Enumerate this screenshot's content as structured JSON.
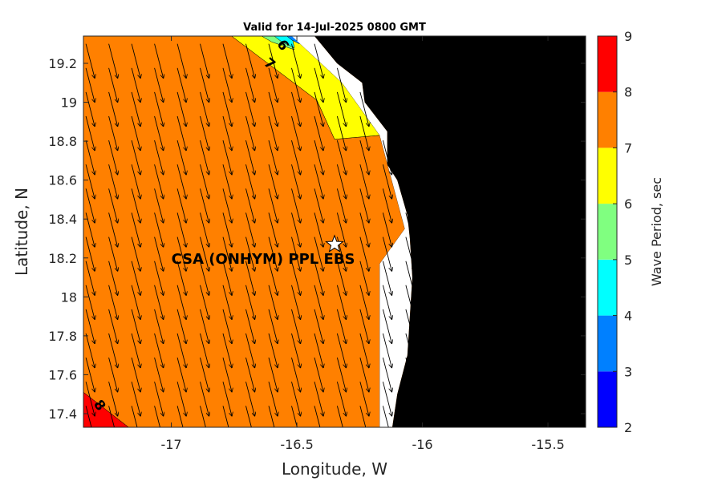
{
  "chart_data": {
    "type": "heatmap",
    "title": "Valid for 14-Jul-2025 0800 GMT",
    "xlabel": "Longitude, W",
    "ylabel": "Latitude, N",
    "xlim": [
      -17.35,
      -15.35
    ],
    "ylim": [
      17.33,
      19.34
    ],
    "x_ticks": [
      "-17",
      "-16.5",
      "-16",
      "-15.5"
    ],
    "x_tick_values": [
      -17,
      -16.5,
      -16,
      -15.5
    ],
    "y_ticks": [
      "17.4",
      "17.6",
      "17.8",
      "18",
      "18.2",
      "18.4",
      "18.6",
      "18.8",
      "19",
      "19.2"
    ],
    "y_tick_values": [
      17.4,
      17.6,
      17.8,
      18.0,
      18.2,
      18.4,
      18.6,
      18.8,
      19.0,
      19.2
    ],
    "colorbar": {
      "label": "Wave Period, sec",
      "ticks": [
        "2",
        "3",
        "4",
        "5",
        "6",
        "7",
        "8",
        "9"
      ],
      "levels": [
        2,
        3,
        4,
        5,
        6,
        7,
        8,
        9
      ],
      "colors": [
        "#0000ff",
        "#0080ff",
        "#00ffff",
        "#80ff80",
        "#ffff00",
        "#ff8000",
        "#ff0000"
      ]
    },
    "regions": [
      {
        "period_range": [
          7,
          8
        ],
        "color": "#ff8000",
        "polygon": [
          [
            -17.35,
            19.34
          ],
          [
            -16.76,
            19.34
          ],
          [
            -16.42,
            19.01
          ],
          [
            -16.35,
            18.81
          ],
          [
            -16.17,
            18.83
          ],
          [
            -16.07,
            18.35
          ],
          [
            -16.17,
            18.17
          ],
          [
            -16.17,
            17.33
          ],
          [
            -17.17,
            17.33
          ],
          [
            -17.35,
            17.51
          ]
        ]
      },
      {
        "period_range": [
          6,
          7
        ],
        "color": "#ffff00",
        "polygon": [
          [
            -16.76,
            19.34
          ],
          [
            -16.52,
            19.34
          ],
          [
            -16.32,
            19.1
          ],
          [
            -16.17,
            18.83
          ],
          [
            -16.35,
            18.81
          ],
          [
            -16.42,
            19.01
          ]
        ]
      },
      {
        "period_range": [
          5,
          6
        ],
        "color": "#80ff80",
        "polygon": [
          [
            -16.64,
            19.34
          ],
          [
            -16.54,
            19.34
          ],
          [
            -16.51,
            19.27
          ],
          [
            -16.6,
            19.31
          ]
        ]
      },
      {
        "period_range": [
          4,
          5
        ],
        "color": "#00ffff",
        "polygon": [
          [
            -16.59,
            19.34
          ],
          [
            -16.52,
            19.34
          ],
          [
            -16.51,
            19.28
          ],
          [
            -16.56,
            19.31
          ]
        ]
      },
      {
        "period_range": [
          3,
          4
        ],
        "color": "#0080ff",
        "polygon": [
          [
            -16.54,
            19.34
          ],
          [
            -16.5,
            19.34
          ],
          [
            -16.49,
            19.3
          ],
          [
            -16.52,
            19.32
          ]
        ]
      },
      {
        "period_range": [
          8,
          9
        ],
        "color": "#ff0000",
        "polygon": [
          [
            -17.35,
            17.51
          ],
          [
            -17.35,
            17.33
          ],
          [
            -17.17,
            17.33
          ]
        ]
      }
    ],
    "no_data_region": {
      "color": "#ffffff",
      "polygon": [
        [
          -16.52,
          19.34
        ],
        [
          -16.43,
          19.34
        ],
        [
          -16.34,
          19.2
        ],
        [
          -16.24,
          19.1
        ],
        [
          -16.23,
          19.0
        ],
        [
          -16.14,
          18.85
        ],
        [
          -16.14,
          18.68
        ],
        [
          -16.1,
          18.6
        ],
        [
          -16.06,
          18.42
        ],
        [
          -16.05,
          18.3
        ],
        [
          -16.04,
          18.1
        ],
        [
          -16.05,
          17.9
        ],
        [
          -16.06,
          17.7
        ],
        [
          -16.1,
          17.5
        ],
        [
          -16.12,
          17.33
        ],
        [
          -16.17,
          17.33
        ],
        [
          -16.17,
          18.17
        ],
        [
          -16.07,
          18.35
        ],
        [
          -16.17,
          18.83
        ],
        [
          -16.32,
          19.1
        ]
      ]
    },
    "land": {
      "color": "#000000",
      "polygon": [
        [
          -16.43,
          19.34
        ],
        [
          -15.35,
          19.34
        ],
        [
          -15.35,
          17.33
        ],
        [
          -16.12,
          17.33
        ],
        [
          -16.1,
          17.5
        ],
        [
          -16.06,
          17.7
        ],
        [
          -16.05,
          17.9
        ],
        [
          -16.04,
          18.1
        ],
        [
          -16.05,
          18.3
        ],
        [
          -16.06,
          18.42
        ],
        [
          -16.1,
          18.6
        ],
        [
          -16.14,
          18.68
        ],
        [
          -16.14,
          18.85
        ],
        [
          -16.23,
          19.0
        ],
        [
          -16.24,
          19.1
        ],
        [
          -16.34,
          19.2
        ]
      ]
    },
    "contour_labels": [
      {
        "text": "6",
        "lon": -16.57,
        "lat": 19.28,
        "rotation": 55
      },
      {
        "text": "7",
        "lon": -16.62,
        "lat": 19.18,
        "rotation": 40
      },
      {
        "text": "8",
        "lon": -17.3,
        "lat": 17.43,
        "rotation": 55
      }
    ],
    "station": {
      "name": "CSA (ONHYM) PPL EBS",
      "lon": -16.35,
      "lat": 18.27,
      "label_lon": -17.0,
      "label_lat": 18.2
    },
    "arrow_direction": {
      "dx": 0.25,
      "dy": -0.97
    },
    "arrow_grid": {
      "lon_start": -17.34,
      "lon_step": 0.091,
      "lat_start": 19.3,
      "lat_step": -0.124
    }
  }
}
